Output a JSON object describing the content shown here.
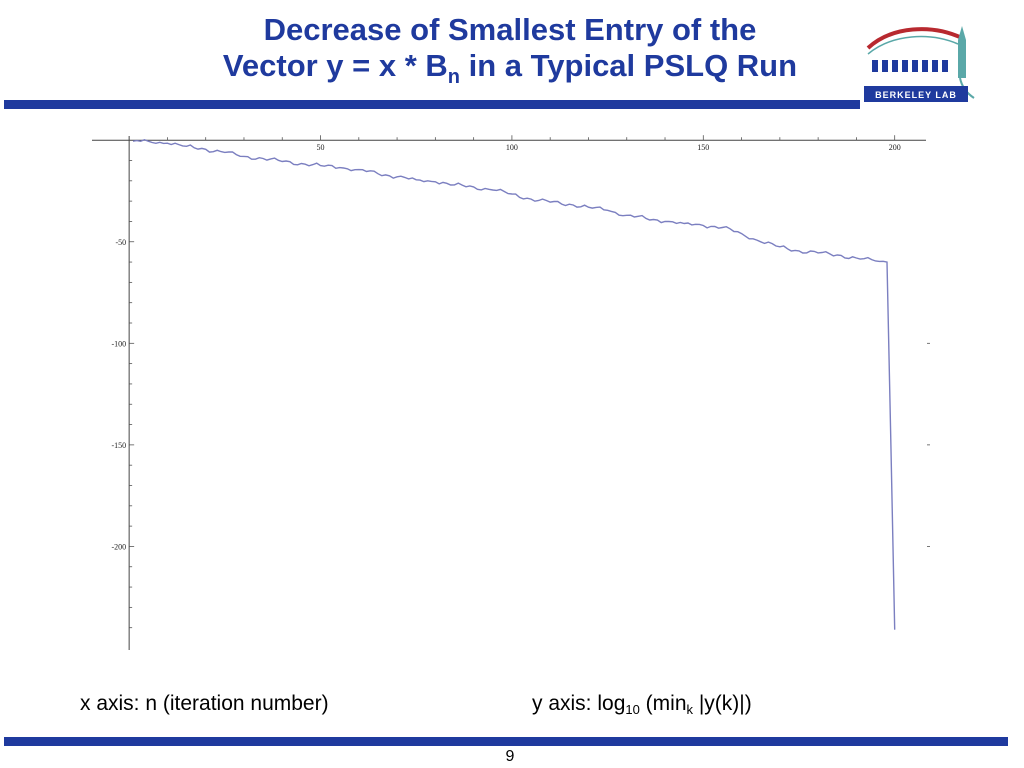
{
  "slide": {
    "title_line1": "Decrease of Smallest Entry of the",
    "title_line2_pre": "Vector y = x * B",
    "title_line2_sub": "n",
    "title_line2_post": " in a Typical PSLQ Run",
    "logo_text": "BERKELEY LAB",
    "x_caption": "x axis:  n (iteration number)",
    "y_caption_pre": "y axis:  log",
    "y_caption_sub1": "10",
    "y_caption_mid": " (min",
    "y_caption_sub2": "k",
    "y_caption_post": " |y(k)|)",
    "page_number": "9"
  },
  "colors": {
    "accent": "#1f3a9e",
    "series": "#7b7fc0",
    "logo_red": "#b8292f",
    "logo_teal": "#5aa8a8"
  },
  "chart_data": {
    "type": "line",
    "title": "",
    "xlabel": "",
    "ylabel": "",
    "xlim": [
      -5,
      204
    ],
    "ylim": [
      -250,
      6
    ],
    "x_ticks": [
      50,
      100,
      150,
      200
    ],
    "y_ticks": [
      -50,
      -100,
      -150,
      -200
    ],
    "x_tick_labels": [
      "50",
      "100",
      "150",
      "200"
    ],
    "y_tick_labels": [
      "-50",
      "-100",
      "-150",
      "-200"
    ],
    "series": [
      {
        "x": [
          1,
          5,
          10,
          15,
          20,
          25,
          30,
          35,
          40,
          45,
          50,
          55,
          60,
          65,
          70,
          75,
          80,
          85,
          90,
          95,
          100,
          105,
          110,
          115,
          120,
          125,
          130,
          135,
          140,
          145,
          150,
          155,
          160,
          165,
          170,
          175,
          180,
          185,
          190,
          195,
          198,
          199,
          200
        ],
        "y": [
          -0.5,
          -0.5,
          -1.5,
          -3,
          -4.5,
          -6,
          -8,
          -9,
          -10.5,
          -11.5,
          -12.5,
          -13.5,
          -14.5,
          -16.5,
          -18,
          -19.5,
          -20.5,
          -22,
          -23,
          -24.5,
          -26.5,
          -29,
          -30.5,
          -31.5,
          -33,
          -34.5,
          -37,
          -38.5,
          -40,
          -41,
          -42,
          -43,
          -46,
          -50,
          -52.5,
          -54.5,
          -55.5,
          -56.5,
          -58,
          -59.5,
          -60,
          -150,
          -241
        ]
      }
    ]
  }
}
